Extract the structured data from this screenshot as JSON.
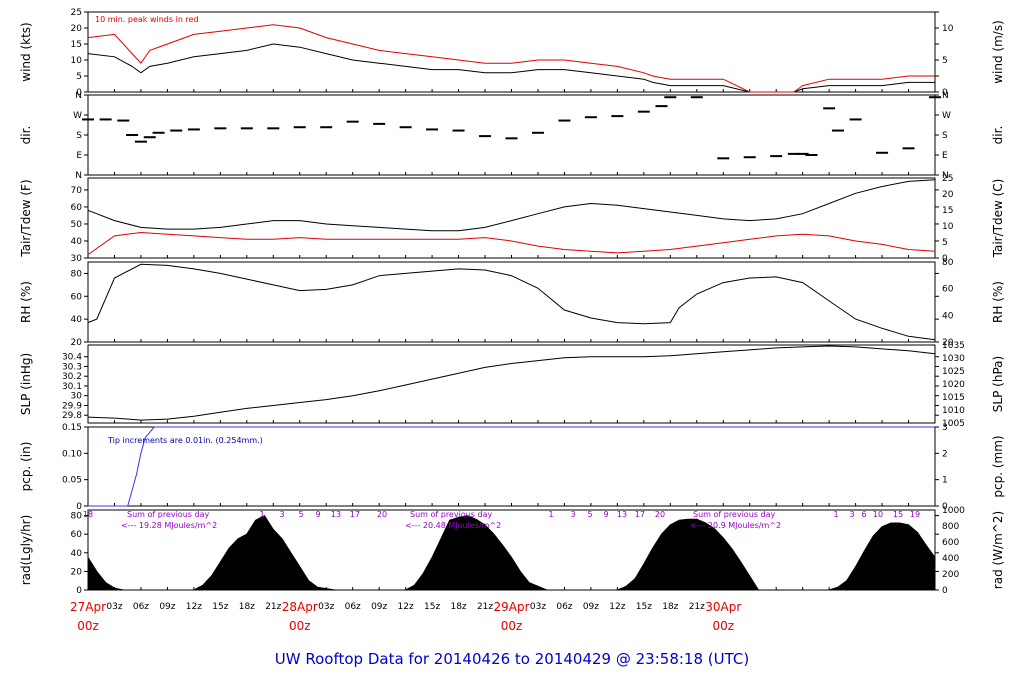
{
  "title": "UW Rooftop Data for 20140426  to  20140429 @ 23:58:18  (UTC)",
  "colors": {
    "black": "#000000",
    "red": "#e00000",
    "blue": "#3333ff",
    "purple": "#9900cc",
    "title": "#0000cc"
  },
  "chart_data": [
    {
      "type": "line",
      "ylabel": "wind (kts)",
      "ylabel_right": "wind (m/s)",
      "ylim": [
        0,
        25
      ],
      "yticks": [
        0,
        5,
        10,
        15,
        20,
        25
      ],
      "yticks_right": [
        0,
        5,
        10
      ],
      "annotation": "10 min. peak winds in red",
      "series": [
        {
          "color": "#000000",
          "x": [
            0,
            3,
            5,
            6,
            7,
            9,
            12,
            15,
            18,
            21,
            24,
            27,
            30,
            33,
            36,
            39,
            42,
            45,
            48,
            51,
            54,
            57,
            60,
            63,
            64,
            66,
            69,
            72,
            75,
            78,
            80,
            81,
            84,
            87,
            90,
            93,
            96
          ],
          "values": [
            12,
            11,
            8,
            6,
            8,
            9,
            11,
            12,
            13,
            15,
            14,
            12,
            10,
            9,
            8,
            7,
            7,
            6,
            6,
            7,
            7,
            6,
            5,
            4,
            3,
            2,
            2,
            2,
            0,
            0,
            0,
            1,
            2,
            2,
            2,
            3,
            3
          ]
        },
        {
          "color": "#e00000",
          "x": [
            0,
            3,
            5,
            6,
            7,
            9,
            12,
            15,
            18,
            21,
            24,
            27,
            30,
            33,
            36,
            39,
            42,
            45,
            48,
            51,
            54,
            57,
            60,
            63,
            64,
            66,
            69,
            72,
            75,
            78,
            80,
            81,
            84,
            87,
            90,
            93,
            96
          ],
          "values": [
            17,
            18,
            12,
            9,
            13,
            15,
            18,
            19,
            20,
            21,
            20,
            17,
            15,
            13,
            12,
            11,
            10,
            9,
            9,
            10,
            10,
            9,
            8,
            6,
            5,
            4,
            4,
            4,
            0,
            0,
            0,
            2,
            4,
            4,
            4,
            5,
            5
          ]
        }
      ]
    },
    {
      "type": "scatter",
      "ylabel": "dir.",
      "ylabel_right": "dir.",
      "ytick_labels": [
        "N",
        "E",
        "S",
        "W",
        "N"
      ],
      "yticks": [
        0,
        90,
        180,
        270,
        360
      ],
      "x": [
        0,
        2,
        4,
        5,
        6,
        7,
        8,
        10,
        12,
        15,
        18,
        21,
        24,
        27,
        30,
        33,
        36,
        39,
        42,
        45,
        48,
        51,
        54,
        57,
        60,
        63,
        65,
        66,
        69,
        72,
        75,
        78,
        80,
        81,
        82,
        84,
        85,
        87,
        90,
        93,
        96
      ],
      "values": [
        250,
        250,
        245,
        180,
        150,
        170,
        190,
        200,
        205,
        210,
        210,
        210,
        215,
        215,
        240,
        230,
        215,
        205,
        200,
        175,
        165,
        190,
        245,
        260,
        265,
        285,
        310,
        350,
        350,
        75,
        80,
        85,
        95,
        95,
        90,
        300,
        200,
        250,
        100,
        120,
        350
      ]
    },
    {
      "type": "line",
      "ylabel": "Tair/Tdew (F)",
      "ylabel_right": "Tair/Tdew (C)",
      "ylim": [
        30,
        77
      ],
      "yticks": [
        30,
        40,
        50,
        60,
        70
      ],
      "yticks_right": [
        0,
        5,
        10,
        15,
        20,
        25
      ],
      "series": [
        {
          "color": "#000000",
          "x": [
            0,
            3,
            6,
            9,
            12,
            15,
            18,
            21,
            24,
            27,
            30,
            33,
            36,
            39,
            42,
            45,
            48,
            51,
            54,
            57,
            60,
            63,
            66,
            69,
            72,
            75,
            78,
            81,
            84,
            87,
            90,
            93,
            96
          ],
          "values": [
            58,
            52,
            48,
            47,
            47,
            48,
            50,
            52,
            52,
            50,
            49,
            48,
            47,
            46,
            46,
            48,
            52,
            56,
            60,
            62,
            61,
            59,
            57,
            55,
            53,
            52,
            53,
            56,
            62,
            68,
            72,
            75,
            76
          ]
        },
        {
          "color": "#e00000",
          "x": [
            0,
            3,
            6,
            9,
            12,
            15,
            18,
            21,
            24,
            27,
            30,
            33,
            36,
            39,
            42,
            45,
            48,
            51,
            54,
            57,
            60,
            63,
            66,
            69,
            72,
            75,
            78,
            81,
            84,
            87,
            90,
            93,
            96
          ],
          "values": [
            32,
            43,
            45,
            44,
            43,
            42,
            41,
            41,
            42,
            41,
            41,
            41,
            41,
            41,
            41,
            42,
            40,
            37,
            35,
            34,
            33,
            34,
            35,
            37,
            39,
            41,
            43,
            44,
            43,
            40,
            38,
            35,
            34
          ]
        }
      ]
    },
    {
      "type": "line",
      "ylabel": "RH (%)",
      "ylabel_right": "RH (%)",
      "ylim": [
        20,
        90
      ],
      "yticks": [
        20,
        40,
        60,
        80
      ],
      "yticks_right": [
        20,
        40,
        60,
        80
      ],
      "series": [
        {
          "color": "#000000",
          "x": [
            0,
            1,
            3,
            6,
            9,
            12,
            15,
            18,
            21,
            24,
            27,
            30,
            33,
            36,
            39,
            42,
            45,
            48,
            51,
            54,
            57,
            60,
            63,
            66,
            67,
            69,
            72,
            75,
            78,
            81,
            84,
            87,
            90,
            93,
            96
          ],
          "values": [
            37,
            40,
            76,
            88,
            87,
            84,
            80,
            75,
            70,
            65,
            66,
            70,
            78,
            80,
            82,
            84,
            83,
            78,
            67,
            48,
            41,
            37,
            36,
            37,
            50,
            62,
            72,
            76,
            77,
            72,
            56,
            40,
            32,
            25,
            22
          ]
        }
      ]
    },
    {
      "type": "line",
      "ylabel": "SLP (inHg)",
      "ylabel_right": "SLP (hPa)",
      "ylim": [
        29.72,
        30.52
      ],
      "yticks": [
        29.8,
        29.9,
        30.0,
        30.1,
        30.2,
        30.3,
        30.4
      ],
      "yticks_right": [
        1005,
        1010,
        1015,
        1020,
        1025,
        1030,
        1035
      ],
      "series": [
        {
          "color": "#000000",
          "x": [
            0,
            3,
            6,
            9,
            12,
            15,
            18,
            21,
            24,
            27,
            30,
            33,
            36,
            39,
            42,
            45,
            48,
            51,
            54,
            57,
            60,
            63,
            66,
            69,
            72,
            75,
            78,
            81,
            84,
            87,
            90,
            93,
            96
          ],
          "values": [
            29.78,
            29.77,
            29.75,
            29.76,
            29.79,
            29.83,
            29.87,
            29.9,
            29.93,
            29.96,
            30.0,
            30.05,
            30.11,
            30.17,
            30.23,
            30.29,
            30.33,
            30.36,
            30.39,
            30.4,
            30.4,
            30.4,
            30.41,
            30.43,
            30.45,
            30.47,
            30.49,
            30.5,
            30.51,
            30.5,
            30.48,
            30.46,
            30.43
          ]
        }
      ]
    },
    {
      "type": "line",
      "ylabel": "pcp. (in)",
      "ylabel_right": "pcp. (mm)",
      "ylim": [
        0,
        0.15
      ],
      "yticks": [
        0,
        0.05,
        0.1,
        0.15
      ],
      "yticks_right": [
        0,
        1,
        2,
        3
      ],
      "annotation": "Tip increments are 0.01in. (0.254mm.)",
      "series": [
        {
          "color": "#3333ff",
          "x": [
            0,
            4.5,
            5,
            5.5,
            6,
            6.5,
            7,
            7.5,
            96
          ],
          "values": [
            0,
            0,
            0.03,
            0.06,
            0.1,
            0.13,
            0.14,
            0.15,
            0.15
          ]
        }
      ]
    },
    {
      "type": "area",
      "ylabel": "rad(Lgly/hr)",
      "ylabel_right": "rad (W/m^2)",
      "ylim": [
        0,
        86
      ],
      "yticks": [
        0,
        20,
        40,
        60,
        80
      ],
      "yticks_right": [
        0,
        200,
        400,
        600,
        800,
        1000
      ],
      "annotations": [
        "Sum of previous day",
        "<--- 19.28 MJoules/m^2",
        "Sum of previous day",
        "<--- 20.48 MJoules/m^2",
        "Sum of previous day",
        "<--- 20.9 MJoules/m^2"
      ],
      "hour_labels": [
        "18",
        "1",
        "3",
        "5",
        "9",
        "13",
        "17",
        "20",
        "1",
        "3",
        "5",
        "9",
        "13",
        "17",
        "20",
        "1",
        "3",
        "6",
        "10",
        "15",
        "19"
      ],
      "series": [
        {
          "color": "#000000",
          "x": [
            0,
            1,
            2,
            3,
            4,
            12,
            13,
            14,
            15,
            16,
            17,
            18,
            19,
            20,
            21,
            22,
            23,
            24,
            25,
            26,
            28,
            36,
            37,
            38,
            39,
            40,
            41,
            42,
            43,
            44,
            45,
            46,
            47,
            48,
            49,
            50,
            52,
            60,
            61,
            62,
            63,
            64,
            65,
            66,
            67,
            68,
            69,
            70,
            71,
            72,
            73,
            74,
            76,
            84,
            85,
            86,
            87,
            88,
            89,
            90,
            91,
            92,
            93,
            94,
            95,
            96
          ],
          "values": [
            35,
            20,
            8,
            2,
            0,
            0,
            5,
            15,
            30,
            45,
            55,
            60,
            75,
            80,
            65,
            55,
            40,
            25,
            10,
            3,
            0,
            0,
            5,
            18,
            35,
            55,
            75,
            78,
            80,
            76,
            70,
            60,
            48,
            35,
            20,
            8,
            0,
            0,
            4,
            12,
            28,
            45,
            60,
            70,
            75,
            76,
            76,
            72,
            66,
            56,
            44,
            30,
            0,
            0,
            3,
            10,
            25,
            42,
            58,
            68,
            72,
            72,
            70,
            62,
            48,
            35
          ]
        }
      ]
    }
  ],
  "x_axis": {
    "hours": [
      "03z",
      "06z",
      "09z",
      "12z",
      "15z",
      "18z",
      "21z",
      "03z",
      "06z",
      "09z",
      "12z",
      "15z",
      "18z",
      "21z",
      "03z",
      "06z",
      "09z",
      "12z",
      "15z",
      "18z",
      "21z"
    ],
    "days": [
      {
        "date": "27Apr",
        "time": "00z"
      },
      {
        "date": "28Apr",
        "time": "00z"
      },
      {
        "date": "29Apr",
        "time": "00z"
      },
      {
        "date": "30Apr",
        "time": "00z"
      }
    ]
  }
}
